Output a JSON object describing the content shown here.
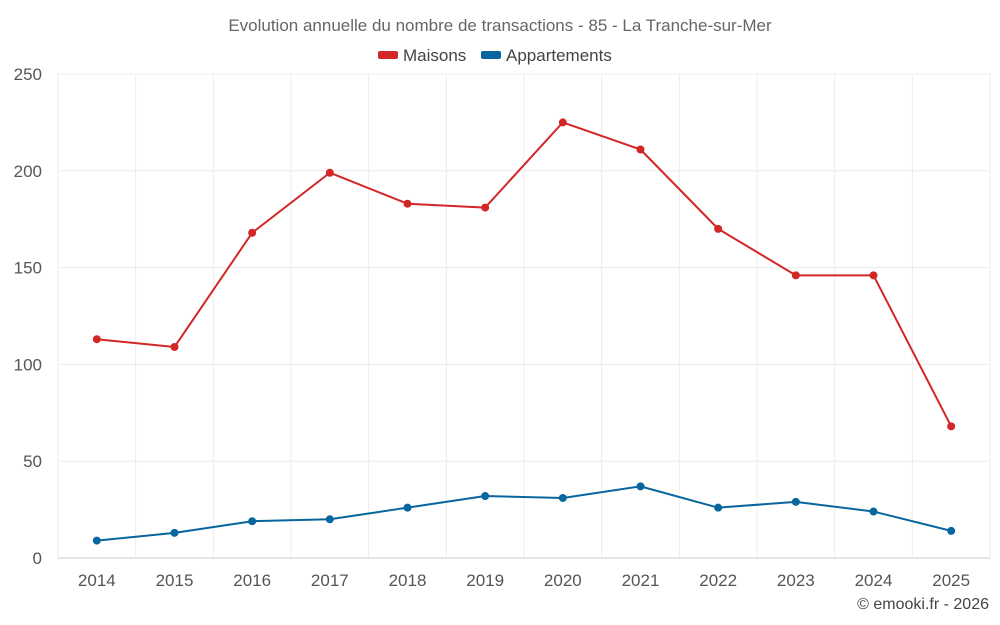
{
  "chart_data": {
    "type": "line",
    "title": "Evolution annuelle du nombre de transactions - 85 - La Tranche-sur-Mer",
    "categories": [
      "2014",
      "2015",
      "2016",
      "2017",
      "2018",
      "2019",
      "2020",
      "2021",
      "2022",
      "2023",
      "2024",
      "2025"
    ],
    "series": [
      {
        "name": "Maisons",
        "color": "#d32626",
        "values": [
          113,
          109,
          168,
          199,
          183,
          181,
          225,
          211,
          170,
          146,
          146,
          68
        ]
      },
      {
        "name": "Appartements",
        "color": "#08669e",
        "values": [
          9,
          13,
          19,
          20,
          26,
          32,
          31,
          37,
          26,
          29,
          24,
          14
        ]
      }
    ],
    "yticks": [
      "0",
      "50",
      "100",
      "150",
      "200",
      "250"
    ],
    "ylim": [
      0,
      250
    ],
    "xlabel": "",
    "ylabel": "",
    "grid": true,
    "legend_position": "top-center"
  },
  "credit": "© emooki.fr - 2026"
}
